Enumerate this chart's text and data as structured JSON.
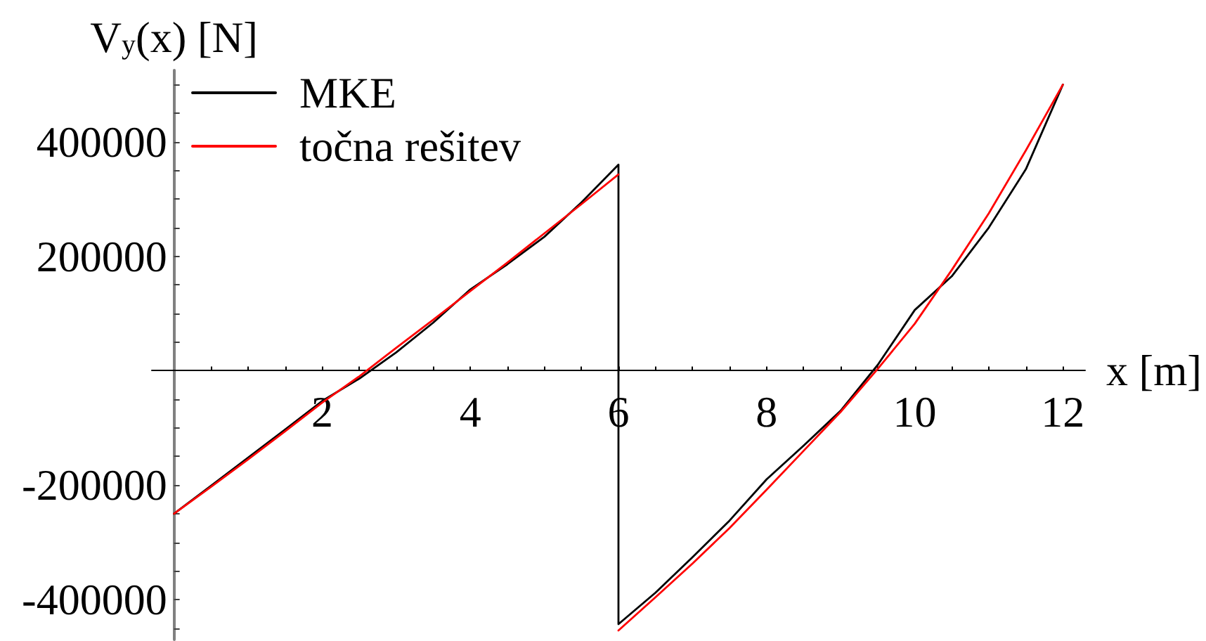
{
  "chart_data": {
    "type": "line",
    "xlabel": "x [m]",
    "ylabel": "V$_{y}$(x) [N]",
    "xlim": [
      -0.3,
      12.3
    ],
    "ylim": [
      -470000,
      525000
    ],
    "xticks": [
      {
        "value": 0.5,
        "label": null
      },
      {
        "value": 1,
        "label": null
      },
      {
        "value": 1.5,
        "label": null
      },
      2,
      {
        "value": 2.5,
        "label": null
      },
      {
        "value": 3,
        "label": null
      },
      {
        "value": 3.5,
        "label": null
      },
      4,
      {
        "value": 4.5,
        "label": null
      },
      {
        "value": 5,
        "label": null
      },
      {
        "value": 5.5,
        "label": null
      },
      6,
      {
        "value": 6.5,
        "label": null
      },
      {
        "value": 7,
        "label": null
      },
      {
        "value": 7.5,
        "label": null
      },
      8,
      {
        "value": 8.5,
        "label": null
      },
      {
        "value": 9,
        "label": null
      },
      {
        "value": 9.5,
        "label": null
      },
      10,
      {
        "value": 10.5,
        "label": null
      },
      {
        "value": 11,
        "label": null
      },
      {
        "value": 11.5,
        "label": null
      },
      12
    ],
    "yticks": [
      {
        "value": -450000,
        "label": null
      },
      -400000,
      {
        "value": -350000,
        "label": null
      },
      {
        "value": -300000,
        "label": null
      },
      {
        "value": -250000,
        "label": null
      },
      -200000,
      {
        "value": -150000,
        "label": null
      },
      {
        "value": -100000,
        "label": null
      },
      {
        "value": -50000,
        "label": null
      },
      {
        "value": 50000,
        "label": null
      },
      {
        "value": 100000,
        "label": null
      },
      {
        "value": 150000,
        "label": null
      },
      200000,
      {
        "value": 250000,
        "label": null
      },
      {
        "value": 300000,
        "label": null
      },
      {
        "value": 350000,
        "label": null
      },
      400000,
      {
        "value": 450000,
        "label": null
      },
      {
        "value": 500000,
        "label": null
      }
    ],
    "grid": false,
    "legend": "top left",
    "marker": "none",
    "line_style": "solid",
    "series": [
      {
        "name": "MKE",
        "color": "#000000",
        "x": [
          0,
          0.5,
          1,
          1.5,
          2,
          2.5,
          3,
          3.5,
          4,
          4.5,
          5,
          5.5,
          6,
          6,
          6.5,
          7,
          7.5,
          8,
          8.5,
          9,
          9.5,
          10,
          10.5,
          11,
          11.5,
          12
        ],
        "values": [
          -250000,
          -201000,
          -152000,
          -103000,
          -53000,
          -14000,
          32000,
          84000,
          142000,
          186000,
          234000,
          294000,
          360000,
          -443000,
          -388000,
          -326000,
          -262000,
          -190000,
          -131000,
          -70000,
          10000,
          106000,
          165000,
          250000,
          352000,
          500000
        ]
      },
      {
        "name": "točna rešitev",
        "color": "#ff0000",
        "x": [
          0,
          0.5,
          1,
          1.5,
          2,
          2.5,
          3,
          3.5,
          4,
          4.5,
          5,
          5.5,
          6
        ],
        "values": [
          -250000,
          -203000,
          -155000,
          -106000,
          -56000,
          -10000,
          40000,
          89000,
          139000,
          189000,
          240000,
          291000,
          343000
        ]
      },
      {
        "color": "#ff0000",
        "x": [
          6,
          6.5,
          7,
          7.5,
          8,
          8.5,
          9,
          9.5,
          10,
          10.5,
          11,
          11.5,
          12
        ],
        "values": [
          -454000,
          -396000,
          -337000,
          -275000,
          -208000,
          -140000,
          -72000,
          3000,
          82000,
          176000,
          275000,
          385000,
          500000
        ]
      }
    ]
  }
}
